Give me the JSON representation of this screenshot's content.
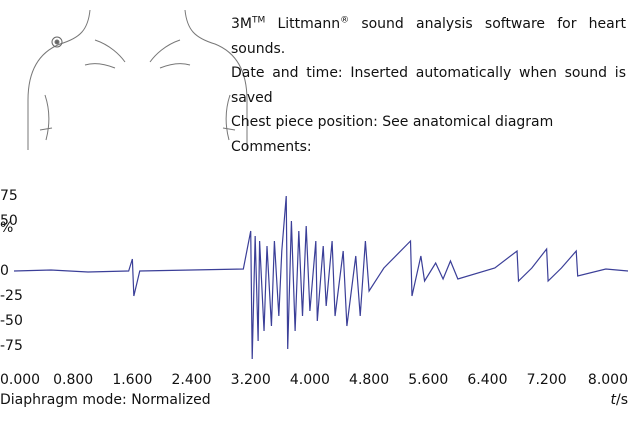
{
  "chart_data": {
    "type": "line",
    "info": {
      "line1": [
        "3M",
        "TM",
        " Littmann",
        "®",
        " sound analysis software for heart sounds."
      ],
      "line2": "Date and time: Inserted automatically when sound is saved",
      "line3": "Chest piece position: See anatomical diagram",
      "line4": "Comments:"
    },
    "y_label": "%",
    "x_label_italic": "t",
    "x_label_unit": "/s",
    "footer": "Diaphragm mode: Normalized",
    "x": [
      0,
      0.5,
      1.0,
      1.55,
      1.6,
      1.62,
      1.7,
      2.4,
      3.1,
      3.2,
      3.22,
      3.26,
      3.3,
      3.32,
      3.38,
      3.42,
      3.48,
      3.52,
      3.58,
      3.62,
      3.68,
      3.7,
      3.75,
      3.8,
      3.85,
      3.9,
      3.95,
      4.0,
      4.08,
      4.1,
      4.18,
      4.22,
      4.3,
      4.34,
      4.45,
      4.5,
      4.62,
      4.68,
      4.75,
      4.8,
      5.0,
      5.36,
      5.38,
      5.5,
      5.55,
      5.7,
      5.8,
      5.9,
      6.0,
      6.5,
      6.8,
      6.82,
      7.0,
      7.2,
      7.22,
      7.4,
      7.6,
      7.62,
      8.0,
      8.3
    ],
    "series": [
      {
        "color": "#3b3f98",
        "values": [
          0,
          1,
          -1,
          0,
          12,
          -25,
          0,
          1,
          2,
          40,
          -88,
          35,
          -70,
          30,
          -60,
          25,
          -55,
          30,
          -45,
          20,
          75,
          -78,
          50,
          -60,
          40,
          -45,
          45,
          -40,
          30,
          -50,
          25,
          -35,
          30,
          -45,
          20,
          -55,
          15,
          -45,
          30,
          -20,
          3,
          30,
          -25,
          15,
          -10,
          8,
          -8,
          10,
          -8,
          3,
          20,
          -10,
          3,
          22,
          -10,
          3,
          20,
          -5,
          2,
          0
        ]
      }
    ],
    "xlim": [
      0,
      8.3
    ],
    "xticks": [
      {
        "value": 0,
        "label": "0.000"
      },
      {
        "value": 0.8,
        "label": "0.800"
      },
      {
        "value": 1.6,
        "label": "1.600"
      },
      {
        "value": 2.4,
        "label": "2.400"
      },
      {
        "value": 3.2,
        "label": "3.200"
      },
      {
        "value": 4.0,
        "label": "4.000"
      },
      {
        "value": 4.8,
        "label": "4.800"
      },
      {
        "value": 5.6,
        "label": "5.600"
      },
      {
        "value": 6.4,
        "label": "6.400"
      },
      {
        "value": 7.2,
        "label": "7.200"
      },
      {
        "value": 8.0,
        "label": "8.000"
      }
    ],
    "ylim": [
      -100,
      80
    ],
    "yticks": [
      75,
      50,
      0,
      -25,
      -50,
      -75
    ]
  }
}
